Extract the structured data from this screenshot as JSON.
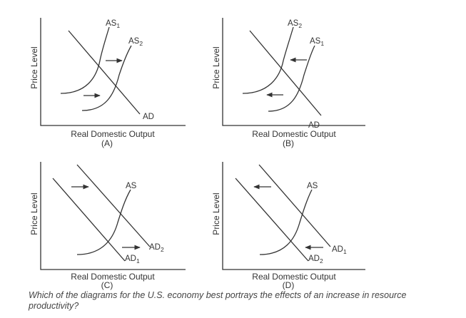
{
  "colors": {
    "ink": "#333333",
    "question": "#444444"
  },
  "panels": [
    {
      "id": "(A)",
      "y_label": "Price Level",
      "x_label": "Real Domestic Output",
      "curves": [
        {
          "name": "AS",
          "sub": "1"
        },
        {
          "name": "AS",
          "sub": "2"
        },
        {
          "name": "AD",
          "sub": ""
        }
      ],
      "arrows": [
        "right",
        "right"
      ]
    },
    {
      "id": "(B)",
      "y_label": "Price Level",
      "x_label": "Real Domestic Output",
      "curves": [
        {
          "name": "AS",
          "sub": "2"
        },
        {
          "name": "AS",
          "sub": "1"
        },
        {
          "name": "AD",
          "sub": ""
        }
      ],
      "arrows": [
        "left",
        "left"
      ]
    },
    {
      "id": "(C)",
      "y_label": "Price Level",
      "x_label": "Real Domestic Output",
      "curves": [
        {
          "name": "AS",
          "sub": ""
        },
        {
          "name": "AD",
          "sub": "2"
        },
        {
          "name": "AD",
          "sub": "1"
        }
      ],
      "arrows": [
        "right",
        "right"
      ]
    },
    {
      "id": "(D)",
      "y_label": "Price Level",
      "x_label": "Real Domestic Output",
      "curves": [
        {
          "name": "AS",
          "sub": ""
        },
        {
          "name": "AD",
          "sub": "1"
        },
        {
          "name": "AD",
          "sub": "2"
        }
      ],
      "arrows": [
        "left",
        "left"
      ]
    }
  ],
  "question": "Which of the diagrams for the U.S. economy best portrays the effects of an increase in resource productivity?"
}
